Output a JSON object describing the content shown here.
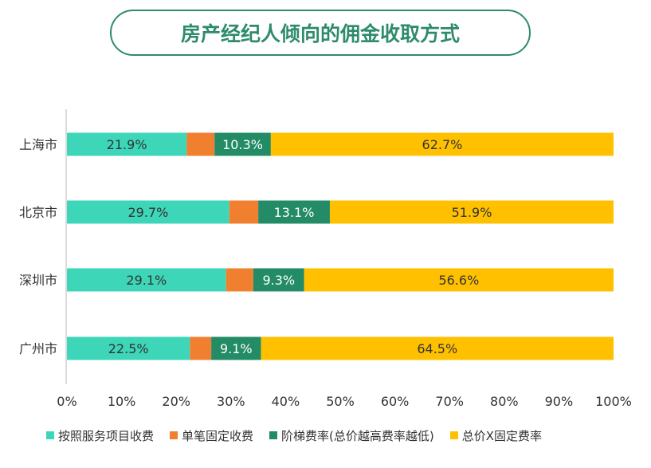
{
  "chart_data": {
    "type": "bar",
    "orientation": "horizontal",
    "stacked": true,
    "title": "房产经纪人倾向的佣金收取方式",
    "categories": [
      "上海市",
      "北京市",
      "深圳市",
      "广州市"
    ],
    "series": [
      {
        "name": "按照服务项目收费",
        "color": "#3dd6b8",
        "values": [
          21.9,
          29.7,
          29.1,
          22.5
        ],
        "labels": [
          "21.9%",
          "29.7%",
          "29.1%",
          "22.5%"
        ]
      },
      {
        "name": "单笔固定收费",
        "color": "#f08030",
        "values": [
          5.1,
          5.3,
          5.0,
          3.9
        ],
        "labels": [
          "",
          "",
          "",
          ""
        ]
      },
      {
        "name": "阶梯费率(总价越高费率越低)",
        "color": "#238b66",
        "values": [
          10.3,
          13.1,
          9.3,
          9.1
        ],
        "labels": [
          "10.3%",
          "13.1%",
          "9.3%",
          "9.1%"
        ]
      },
      {
        "name": "总价X固定费率",
        "color": "#ffc000",
        "values": [
          62.7,
          51.9,
          56.6,
          64.5
        ],
        "labels": [
          "62.7%",
          "51.9%",
          "56.6%",
          "64.5%"
        ]
      }
    ],
    "x_ticks": [
      "0%",
      "10%",
      "20%",
      "30%",
      "40%",
      "50%",
      "60%",
      "70%",
      "80%",
      "90%",
      "100%"
    ],
    "xlim": [
      0,
      100
    ],
    "grid": false,
    "legend_position": "bottom"
  }
}
